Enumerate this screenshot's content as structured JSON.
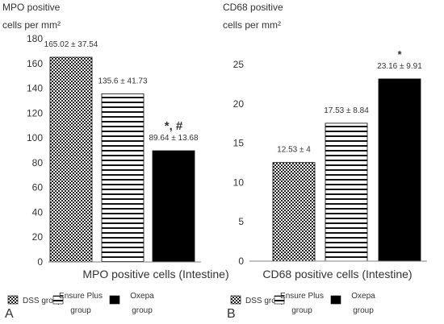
{
  "chart_data": [
    {
      "panel_label": "A",
      "type": "bar",
      "ylabel_line1": "MPO positive",
      "ylabel_line2": "cells per mm²",
      "xlabel": "MPO positive cells (Intestine)",
      "ylim": [
        0,
        180
      ],
      "yticks": [
        0,
        20,
        40,
        60,
        80,
        100,
        120,
        140,
        160,
        180
      ],
      "grid": false,
      "categories": [
        "DSS group",
        "Ensure Plus group",
        "Oxepa group"
      ],
      "values": [
        165.02,
        135.6,
        89.64
      ],
      "data_labels": [
        "165.02 ± 37.54",
        "135.6 ± 41.73",
        "89.64 ± 13.68"
      ],
      "annotations": [
        "",
        "",
        "*, #"
      ],
      "patterns": [
        "dotted",
        "horizontal-lines",
        "solid"
      ]
    },
    {
      "panel_label": "B",
      "type": "bar",
      "ylabel_line1": "CD68 positive",
      "ylabel_line2": "cells per mm²",
      "xlabel": "CD68 positive cells (Intestine)",
      "ylim": [
        0,
        25
      ],
      "yticks": [
        0,
        5,
        10,
        15,
        20,
        25
      ],
      "grid": false,
      "categories": [
        "DSS group",
        "Ensure Plus group",
        "Oxepa group"
      ],
      "values": [
        12.53,
        17.53,
        23.16
      ],
      "data_labels": [
        "12.53 ± 4",
        "17.53 ± 8.84",
        "23.16 ± 9.91"
      ],
      "annotations": [
        "",
        "",
        "*"
      ],
      "patterns": [
        "dotted",
        "horizontal-lines",
        "solid"
      ]
    }
  ],
  "legend": {
    "items": [
      {
        "line1": "DSS group",
        "line2": "",
        "pattern": "dotted"
      },
      {
        "line1": "Ensure Plus",
        "line2": "group",
        "pattern": "horizontal-lines"
      },
      {
        "line1": "Oxepa",
        "line2": "group",
        "pattern": "solid"
      }
    ]
  },
  "colors": {
    "bar_dark": "#000000",
    "axis": "#808080",
    "text": "#333333"
  }
}
